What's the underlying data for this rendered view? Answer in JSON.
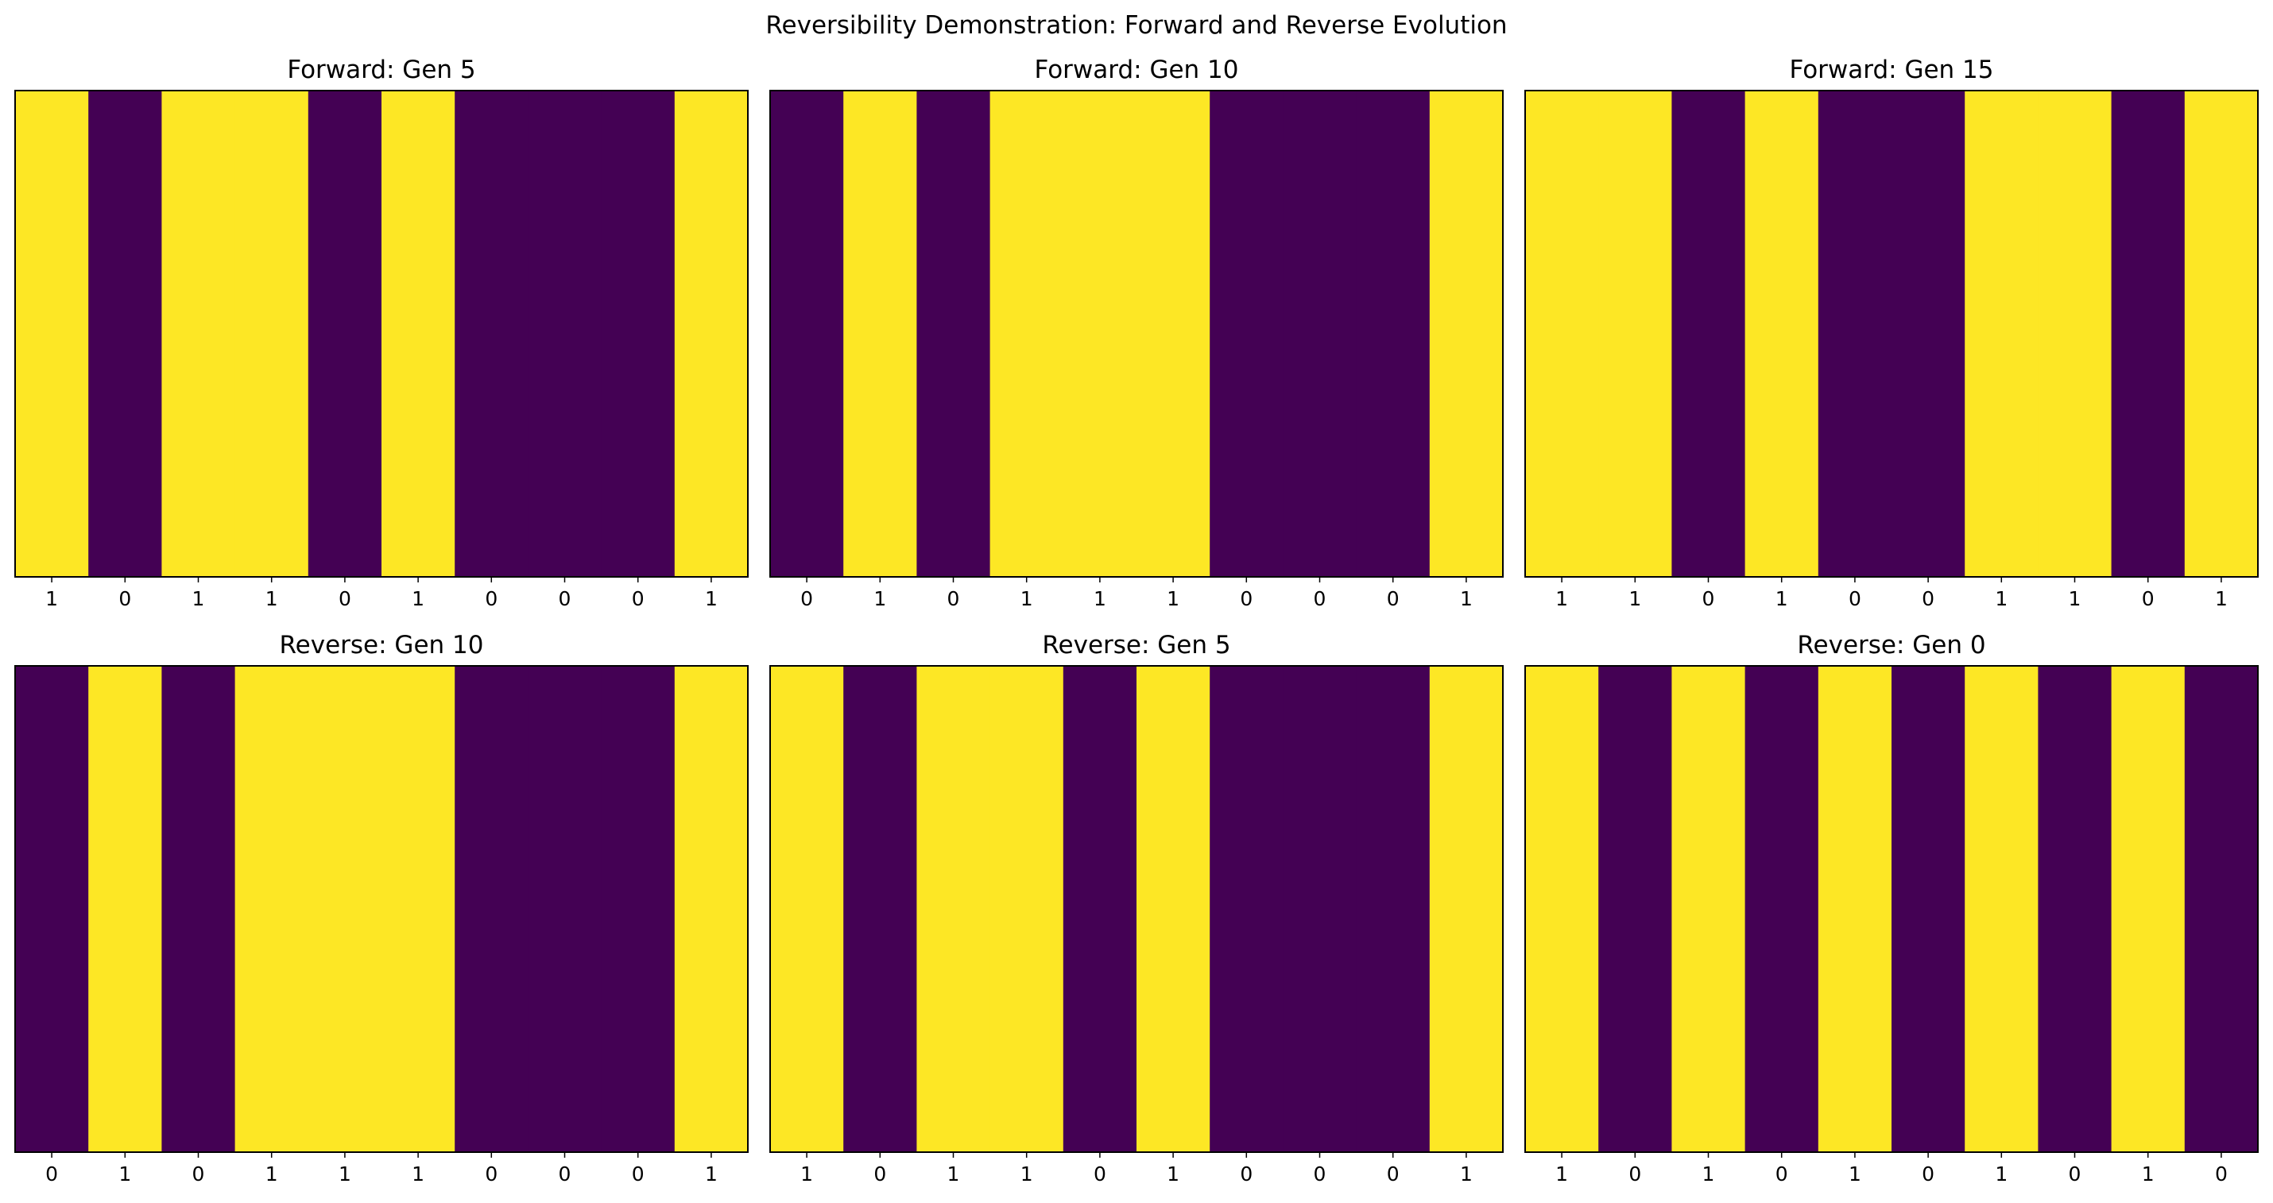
{
  "chart_data": {
    "type": "heatmap",
    "title": "Reversibility Demonstration: Forward and Reverse Evolution",
    "colors": {
      "0": "#440154",
      "1": "#fde725"
    },
    "grid": false,
    "panels": [
      {
        "title": "Forward: Gen 5",
        "cells": [
          1,
          0,
          1,
          1,
          0,
          1,
          0,
          0,
          0,
          1
        ]
      },
      {
        "title": "Forward: Gen 10",
        "cells": [
          0,
          1,
          0,
          1,
          1,
          1,
          0,
          0,
          0,
          1
        ]
      },
      {
        "title": "Forward: Gen 15",
        "cells": [
          1,
          1,
          0,
          1,
          0,
          0,
          1,
          1,
          0,
          1
        ]
      },
      {
        "title": "Reverse: Gen 10",
        "cells": [
          0,
          1,
          0,
          1,
          1,
          1,
          0,
          0,
          0,
          1
        ]
      },
      {
        "title": "Reverse: Gen 5",
        "cells": [
          1,
          0,
          1,
          1,
          0,
          1,
          0,
          0,
          0,
          1
        ]
      },
      {
        "title": "Reverse: Gen 0",
        "cells": [
          1,
          0,
          1,
          0,
          1,
          0,
          1,
          0,
          1,
          0
        ]
      }
    ]
  }
}
